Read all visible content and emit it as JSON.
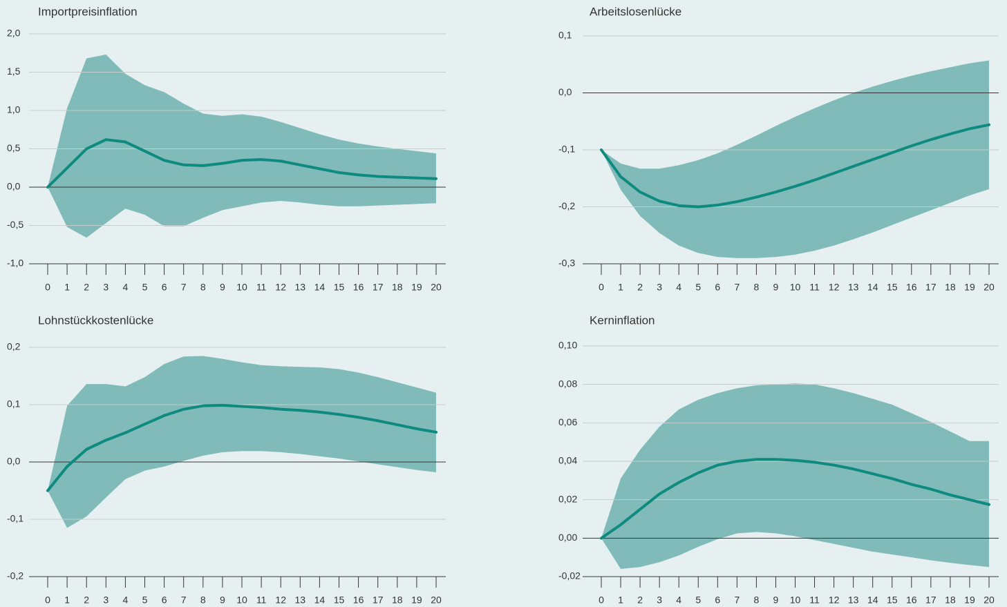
{
  "chart_data": [
    {
      "type": "line",
      "title": "Importpreisinflation",
      "x": [
        0,
        1,
        2,
        3,
        4,
        5,
        6,
        7,
        8,
        9,
        10,
        11,
        12,
        13,
        14,
        15,
        16,
        17,
        18,
        19,
        20
      ],
      "series": [
        {
          "color": "#0f8a7e",
          "values": [
            0,
            0.25,
            0.5,
            0.62,
            0.59,
            0.47,
            0.35,
            0.29,
            0.28,
            0.31,
            0.35,
            0.36,
            0.34,
            0.29,
            0.24,
            0.19,
            0.16,
            0.14,
            0.13,
            0.12,
            0.11
          ]
        }
      ],
      "band": {
        "color": "#80bbb9",
        "upper": [
          0,
          1.03,
          1.68,
          1.73,
          1.48,
          1.33,
          1.24,
          1.09,
          0.96,
          0.93,
          0.95,
          0.92,
          0.85,
          0.77,
          0.69,
          0.62,
          0.57,
          0.53,
          0.5,
          0.47,
          0.44
        ],
        "lower": [
          0,
          -0.52,
          -0.66,
          -0.47,
          -0.28,
          -0.36,
          -0.51,
          -0.51,
          -0.4,
          -0.3,
          -0.25,
          -0.2,
          -0.18,
          -0.2,
          -0.23,
          -0.25,
          -0.25,
          -0.24,
          -0.23,
          -0.22,
          -0.21
        ]
      },
      "xlim": [
        0,
        20
      ],
      "ylim": [
        -1,
        2
      ],
      "yticks": [
        {
          "value": -1,
          "label": "-1,0"
        },
        {
          "value": -0.5,
          "label": "-0,5"
        },
        {
          "value": 0,
          "label": "0,0"
        },
        {
          "value": 0.5,
          "label": "0,5"
        },
        {
          "value": 1,
          "label": "1,0"
        },
        {
          "value": 1.5,
          "label": "1,5"
        },
        {
          "value": 2,
          "label": "2,0"
        }
      ],
      "grid": true
    },
    {
      "type": "line",
      "title": "Arbeitslosenlücke",
      "x": [
        0,
        1,
        2,
        3,
        4,
        5,
        6,
        7,
        8,
        9,
        10,
        11,
        12,
        13,
        14,
        15,
        16,
        17,
        18,
        19,
        20
      ],
      "series": [
        {
          "color": "#0f8a7e",
          "values": [
            -0.1,
            -0.147,
            -0.174,
            -0.19,
            -0.198,
            -0.2,
            -0.197,
            -0.191,
            -0.183,
            -0.174,
            -0.164,
            -0.153,
            -0.141,
            -0.129,
            -0.117,
            -0.105,
            -0.093,
            -0.082,
            -0.072,
            -0.063,
            -0.056
          ]
        }
      ],
      "band": {
        "color": "#80bbb9",
        "upper": [
          -0.1,
          -0.124,
          -0.133,
          -0.133,
          -0.127,
          -0.118,
          -0.106,
          -0.091,
          -0.075,
          -0.058,
          -0.042,
          -0.027,
          -0.013,
          0,
          0.011,
          0.021,
          0.03,
          0.038,
          0.045,
          0.052,
          0.057
        ],
        "lower": [
          -0.1,
          -0.17,
          -0.216,
          -0.246,
          -0.268,
          -0.281,
          -0.288,
          -0.29,
          -0.29,
          -0.288,
          -0.284,
          -0.277,
          -0.268,
          -0.257,
          -0.245,
          -0.232,
          -0.219,
          -0.206,
          -0.193,
          -0.18,
          -0.169
        ]
      },
      "xlim": [
        0,
        20
      ],
      "ylim": [
        -0.3,
        0.1
      ],
      "yticks": [
        {
          "value": -0.3,
          "label": "-0,3"
        },
        {
          "value": -0.2,
          "label": "-0,2"
        },
        {
          "value": -0.1,
          "label": "-0,1"
        },
        {
          "value": 0,
          "label": "0,0"
        },
        {
          "value": 0.1,
          "label": "0,1"
        }
      ],
      "grid": true
    },
    {
      "type": "line",
      "title": "Lohnstückkostenlücke",
      "x": [
        0,
        1,
        2,
        3,
        4,
        5,
        6,
        7,
        8,
        9,
        10,
        11,
        12,
        13,
        14,
        15,
        16,
        17,
        18,
        19,
        20
      ],
      "series": [
        {
          "color": "#0f8a7e",
          "values": [
            -0.05,
            -0.008,
            0.022,
            0.038,
            0.051,
            0.066,
            0.081,
            0.092,
            0.098,
            0.099,
            0.097,
            0.095,
            0.092,
            0.09,
            0.087,
            0.083,
            0.078,
            0.072,
            0.065,
            0.058,
            0.052
          ]
        }
      ],
      "band": {
        "color": "#80bbb9",
        "upper": [
          -0.05,
          0.098,
          0.136,
          0.136,
          0.132,
          0.148,
          0.171,
          0.184,
          0.185,
          0.18,
          0.174,
          0.169,
          0.167,
          0.166,
          0.165,
          0.162,
          0.156,
          0.148,
          0.139,
          0.13,
          0.121
        ],
        "lower": [
          -0.05,
          -0.115,
          -0.095,
          -0.062,
          -0.03,
          -0.015,
          -0.008,
          0.002,
          0.011,
          0.017,
          0.019,
          0.019,
          0.017,
          0.014,
          0.01,
          0.006,
          0.001,
          -0.004,
          -0.009,
          -0.014,
          -0.018
        ]
      },
      "xlim": [
        0,
        20
      ],
      "ylim": [
        -0.2,
        0.2
      ],
      "yticks": [
        {
          "value": -0.2,
          "label": "-0,2"
        },
        {
          "value": -0.1,
          "label": "-0,1"
        },
        {
          "value": 0,
          "label": "0,0"
        },
        {
          "value": 0.1,
          "label": "0,1"
        },
        {
          "value": 0.2,
          "label": "0,2"
        }
      ],
      "grid": true
    },
    {
      "type": "line",
      "title": "Kerninflation",
      "x": [
        0,
        1,
        2,
        3,
        4,
        5,
        6,
        7,
        8,
        9,
        10,
        11,
        12,
        13,
        14,
        15,
        16,
        17,
        18,
        19,
        20
      ],
      "series": [
        {
          "color": "#0f8a7e",
          "values": [
            0,
            0.007,
            0.015,
            0.023,
            0.029,
            0.034,
            0.038,
            0.04,
            0.041,
            0.041,
            0.0405,
            0.0395,
            0.038,
            0.036,
            0.0335,
            0.031,
            0.028,
            0.0255,
            0.0225,
            0.02,
            0.0175
          ]
        }
      ],
      "band": {
        "color": "#80bbb9",
        "upper": [
          0,
          0.031,
          0.046,
          0.058,
          0.067,
          0.072,
          0.0755,
          0.078,
          0.0795,
          0.08,
          0.0805,
          0.08,
          0.078,
          0.0755,
          0.0725,
          0.0695,
          0.065,
          0.0605,
          0.0555,
          0.0505,
          0.0505
        ],
        "lower": [
          0,
          -0.016,
          -0.015,
          -0.0125,
          -0.009,
          -0.0045,
          -0.0005,
          0.0025,
          0.0032,
          0.0025,
          0.001,
          -0.001,
          -0.003,
          -0.005,
          -0.007,
          -0.0085,
          -0.01,
          -0.0115,
          -0.0128,
          -0.014,
          -0.015
        ]
      },
      "xlim": [
        0,
        20
      ],
      "ylim": [
        -0.02,
        0.1
      ],
      "yticks": [
        {
          "value": -0.02,
          "label": "-0,02"
        },
        {
          "value": 0,
          "label": "0,00"
        },
        {
          "value": 0.02,
          "label": "0,02"
        },
        {
          "value": 0.04,
          "label": "0,04"
        },
        {
          "value": 0.06,
          "label": "0,06"
        },
        {
          "value": 0.08,
          "label": "0,08"
        },
        {
          "value": 0.1,
          "label": "0,10"
        }
      ],
      "grid": true
    }
  ]
}
